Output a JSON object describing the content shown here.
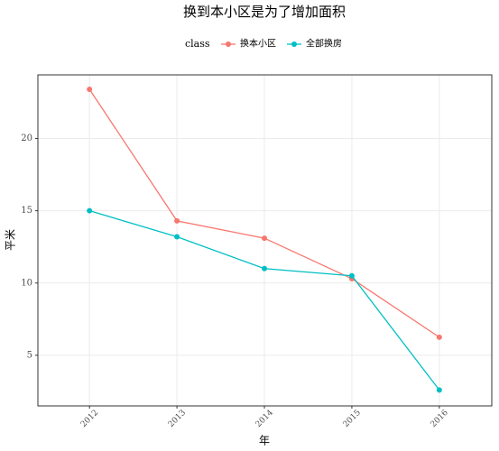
{
  "chart_data": {
    "type": "line",
    "title": "换到本小区是为了增加面积",
    "x_label": "年",
    "y_label": "平米",
    "legend_title": "class",
    "x": [
      2012,
      2013,
      2014,
      2015,
      2016
    ],
    "series": [
      {
        "name": "换本小区",
        "color": "#F8766D",
        "values": [
          23.4,
          14.3,
          13.1,
          10.3,
          6.25
        ]
      },
      {
        "name": "全部换房",
        "color": "#00BFC4",
        "values": [
          15.0,
          13.2,
          11.0,
          10.5,
          2.6
        ]
      }
    ],
    "xlim": [
      2011.41,
      2016.6
    ],
    "xticks": [
      2012,
      2013,
      2014,
      2015,
      2016
    ],
    "ylim": [
      1.5,
      24.4
    ],
    "yticks": [
      5,
      10,
      15,
      20
    ],
    "grid": true,
    "legend_position": "top"
  }
}
